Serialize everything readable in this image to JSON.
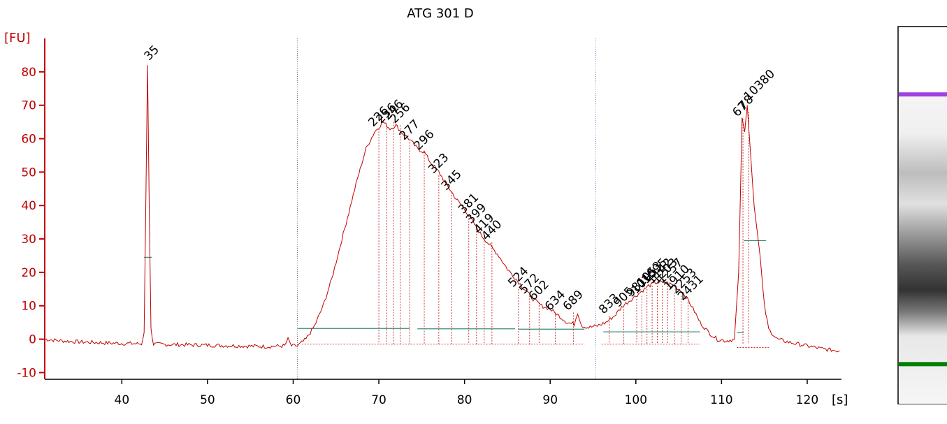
{
  "chart_data": {
    "type": "line",
    "title": "ATG 301 D",
    "ylabel": "[FU]",
    "xlabel": "[s]",
    "xlim": [
      31,
      124
    ],
    "ylim": [
      -12,
      90
    ],
    "x_ticks": [
      40,
      50,
      60,
      70,
      80,
      90,
      100,
      110,
      120
    ],
    "y_ticks": [
      -10,
      0,
      10,
      20,
      30,
      40,
      50,
      60,
      70,
      80
    ],
    "series": [
      {
        "color": "#c00000",
        "points": [
          [
            31,
            0
          ],
          [
            33,
            -0.5
          ],
          [
            35,
            -0.8
          ],
          [
            37,
            -1
          ],
          [
            39,
            -1.2
          ],
          [
            41,
            -1.3
          ],
          [
            42.3,
            -1.4
          ],
          [
            42.6,
            2
          ],
          [
            42.8,
            40
          ],
          [
            43,
            82
          ],
          [
            43.2,
            40
          ],
          [
            43.4,
            3
          ],
          [
            43.7,
            -1.5
          ],
          [
            46,
            -1.6
          ],
          [
            50,
            -1.8
          ],
          [
            54,
            -2
          ],
          [
            57,
            -2.2
          ],
          [
            59,
            -2
          ],
          [
            59.4,
            0
          ],
          [
            59.8,
            -2
          ],
          [
            60.5,
            -2
          ],
          [
            61.5,
            0
          ],
          [
            62.5,
            4
          ],
          [
            63.5,
            10
          ],
          [
            64.5,
            18
          ],
          [
            65.5,
            28
          ],
          [
            66.5,
            38
          ],
          [
            67.5,
            48
          ],
          [
            68.5,
            57
          ],
          [
            69.5,
            62
          ],
          [
            70.5,
            65
          ],
          [
            71.3,
            63
          ],
          [
            72,
            64
          ],
          [
            72.6,
            62
          ],
          [
            73.5,
            60
          ],
          [
            74.5,
            57
          ],
          [
            75.3,
            56
          ],
          [
            76,
            53
          ],
          [
            77,
            50
          ],
          [
            78,
            46
          ],
          [
            79,
            42
          ],
          [
            80,
            39
          ],
          [
            81,
            35
          ],
          [
            82,
            31
          ],
          [
            83,
            28
          ],
          [
            84,
            25
          ],
          [
            85,
            21
          ],
          [
            86,
            18
          ],
          [
            87,
            15
          ],
          [
            88,
            12
          ],
          [
            89,
            10
          ],
          [
            90,
            9
          ],
          [
            91,
            7
          ],
          [
            92,
            5
          ],
          [
            92.8,
            4.5
          ],
          [
            93.2,
            8
          ],
          [
            93.7,
            4
          ],
          [
            94.5,
            3.5
          ],
          [
            95.5,
            4
          ],
          [
            96.5,
            5
          ],
          [
            97.5,
            7
          ],
          [
            98.5,
            10
          ],
          [
            99.5,
            12
          ],
          [
            100.5,
            14
          ],
          [
            101.5,
            16
          ],
          [
            102.5,
            17
          ],
          [
            103.5,
            17
          ],
          [
            104.5,
            16
          ],
          [
            105.5,
            14
          ],
          [
            106.5,
            10
          ],
          [
            107.5,
            5
          ],
          [
            108.5,
            2
          ],
          [
            109.5,
            0
          ],
          [
            110.5,
            -0.5
          ],
          [
            111.5,
            0
          ],
          [
            112,
            20
          ],
          [
            112.4,
            66
          ],
          [
            112.7,
            62
          ],
          [
            113,
            70
          ],
          [
            113.4,
            55
          ],
          [
            113.8,
            40
          ],
          [
            114.5,
            25
          ],
          [
            115,
            10
          ],
          [
            115.5,
            3
          ],
          [
            116.5,
            0
          ],
          [
            118,
            -1
          ],
          [
            120,
            -2
          ],
          [
            122,
            -3
          ],
          [
            123.8,
            -3.5
          ]
        ]
      }
    ],
    "markers": [
      {
        "x": 43,
        "y": 82,
        "label": "35",
        "color": "#008000"
      },
      {
        "x": 113,
        "y": 70,
        "label": "10380",
        "color": "#9933cc"
      }
    ],
    "peaks": [
      {
        "x": 70.0,
        "y": 63,
        "label": "226"
      },
      {
        "x": 70.9,
        "y": 64,
        "label": "236"
      },
      {
        "x": 71.7,
        "y": 65,
        "label": "246"
      },
      {
        "x": 72.5,
        "y": 64,
        "label": "256"
      },
      {
        "x": 73.6,
        "y": 59,
        "label": "277"
      },
      {
        "x": 75.3,
        "y": 56,
        "label": "296"
      },
      {
        "x": 77.0,
        "y": 49,
        "label": "323"
      },
      {
        "x": 78.5,
        "y": 44,
        "label": "345"
      },
      {
        "x": 80.5,
        "y": 37,
        "label": "381"
      },
      {
        "x": 81.4,
        "y": 34,
        "label": "399"
      },
      {
        "x": 82.3,
        "y": 31,
        "label": "419"
      },
      {
        "x": 83.2,
        "y": 29,
        "label": "440"
      },
      {
        "x": 86.3,
        "y": 15,
        "label": "524"
      },
      {
        "x": 87.6,
        "y": 13,
        "label": "572"
      },
      {
        "x": 88.7,
        "y": 11,
        "label": "602"
      },
      {
        "x": 90.6,
        "y": 8,
        "label": "634"
      },
      {
        "x": 92.7,
        "y": 8,
        "label": "689"
      },
      {
        "x": 96.9,
        "y": 7,
        "label": "833"
      },
      {
        "x": 98.6,
        "y": 9,
        "label": "905"
      },
      {
        "x": 100.1,
        "y": 12,
        "label": "981"
      },
      {
        "x": 100.7,
        "y": 13,
        "label": "1015"
      },
      {
        "x": 101.3,
        "y": 15,
        "label": "1053"
      },
      {
        "x": 101.9,
        "y": 16,
        "label": "1095"
      },
      {
        "x": 102.5,
        "y": 16,
        "label": "1142"
      },
      {
        "x": 103.1,
        "y": 16,
        "label": "1203"
      },
      {
        "x": 103.7,
        "y": 16,
        "label": "1257"
      },
      {
        "x": 104.5,
        "y": 14,
        "label": "1910"
      },
      {
        "x": 105.3,
        "y": 13,
        "label": "2253"
      },
      {
        "x": 106.1,
        "y": 11,
        "label": "2431"
      },
      {
        "x": 112.5,
        "y": 66,
        "label": "67"
      },
      {
        "x": 113.2,
        "y": 68,
        "label": "78"
      }
    ],
    "dotted_marks": [
      60.5,
      95.3
    ],
    "baseline_segments": [
      {
        "x1": 60.5,
        "x2": 73.6,
        "y": 3.2
      },
      {
        "x1": 74.5,
        "x2": 85.9,
        "y": 3.1
      },
      {
        "x1": 86.3,
        "x2": 94.0,
        "y": 3.0
      },
      {
        "x1": 96.2,
        "x2": 107.5,
        "y": 2.2
      },
      {
        "x1": 111.8,
        "x2": 112.6,
        "y": 2.0
      },
      {
        "x1": 112.6,
        "x2": 115.2,
        "y": 29.5
      }
    ],
    "reference_marks": [
      {
        "x1": 42.6,
        "x2": 43.5,
        "y": 24.5
      }
    ],
    "grid": false,
    "gel_lane": {
      "bands": [
        {
          "pos": 0.18,
          "color": "#a040e0"
        },
        {
          "pos": 0.895,
          "color": "#008000"
        }
      ]
    }
  }
}
